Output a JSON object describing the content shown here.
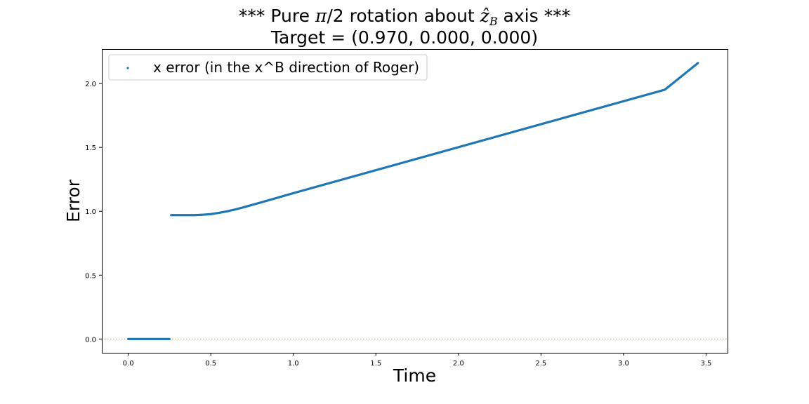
{
  "chart_data": {
    "type": "scatter",
    "title_prefix": "*** Pure ",
    "title_pi": "π",
    "title_mid": "/2 rotation about ",
    "title_z": "ẑ",
    "title_sub": "B",
    "title_suffix": " axis ***",
    "subtitle": "Target = (0.970, 0.000, 0.000)",
    "xlabel": "Time",
    "ylabel": "Error",
    "xlim": [
      -0.16,
      3.63
    ],
    "ylim": [
      -0.108,
      2.27
    ],
    "xticks": [
      0.0,
      0.5,
      1.0,
      1.5,
      2.0,
      2.5,
      3.0,
      3.5
    ],
    "xtick_labels": [
      "0.0",
      "0.5",
      "1.0",
      "1.5",
      "2.0",
      "2.5",
      "3.0",
      "3.5"
    ],
    "yticks": [
      0.0,
      0.5,
      1.0,
      1.5,
      2.0
    ],
    "ytick_labels": [
      "0.0",
      "0.5",
      "1.0",
      "1.5",
      "2.0"
    ],
    "grid": false,
    "legend_position": "upper-left",
    "reference_line": {
      "y": 0.0,
      "style": "dotted",
      "color": "#e8c11f"
    },
    "series": [
      {
        "name": "x error (in the x^B direction of Roger)",
        "color": "#1f77b4",
        "x": [
          0.0,
          0.05,
          0.1,
          0.15,
          0.2,
          0.25,
          0.26,
          0.3,
          0.35,
          0.4,
          0.45,
          0.5,
          0.55,
          0.6,
          0.65,
          0.7,
          0.75,
          0.8,
          0.9,
          1.0,
          1.25,
          1.5,
          1.75,
          2.0,
          2.25,
          2.5,
          2.75,
          3.0,
          3.25,
          3.45
        ],
        "y": [
          0.0,
          0.0,
          0.0,
          0.0,
          0.0,
          0.0,
          0.97,
          0.97,
          0.97,
          0.97,
          0.973,
          0.978,
          0.988,
          1.0,
          1.015,
          1.032,
          1.05,
          1.068,
          1.105,
          1.142,
          1.232,
          1.322,
          1.412,
          1.502,
          1.592,
          1.682,
          1.772,
          1.862,
          1.952,
          2.16
        ]
      }
    ]
  }
}
